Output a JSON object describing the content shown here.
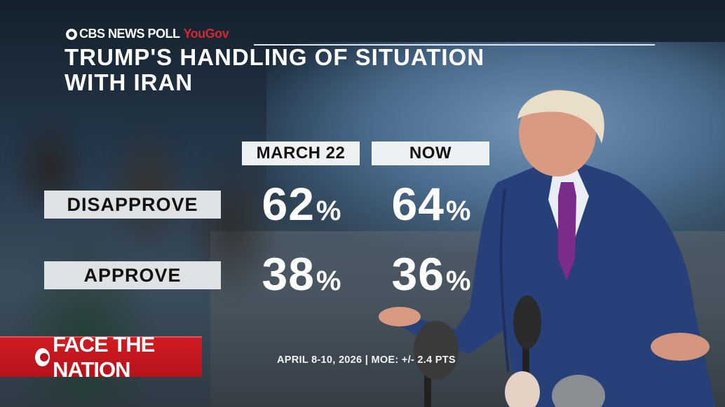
{
  "header": {
    "network": "CBS NEWS POLL",
    "partner": "YouGov",
    "title_line1": "TRUMP'S HANDLING OF SITUATION",
    "title_line2": "WITH IRAN"
  },
  "columns": [
    "MARCH 22",
    "NOW"
  ],
  "rows": [
    {
      "label": "DISAPPROVE",
      "values": [
        "62",
        "64"
      ]
    },
    {
      "label": "APPROVE",
      "values": [
        "38",
        "36"
      ]
    }
  ],
  "percent_sign": "%",
  "footer": {
    "program": "FACE THE NATION",
    "fieldwork": "APRIL 8-10, 2026",
    "separator": "|",
    "moe": "MOE: +/- 2.4 PTS"
  },
  "colors": {
    "brand_red": "#d21b22",
    "yougov_red": "#d8262f",
    "label_box": "#dfe2e4",
    "text_white": "#ffffff"
  },
  "icons": [
    "cbs-eye-icon",
    "microphone-icon"
  ]
}
